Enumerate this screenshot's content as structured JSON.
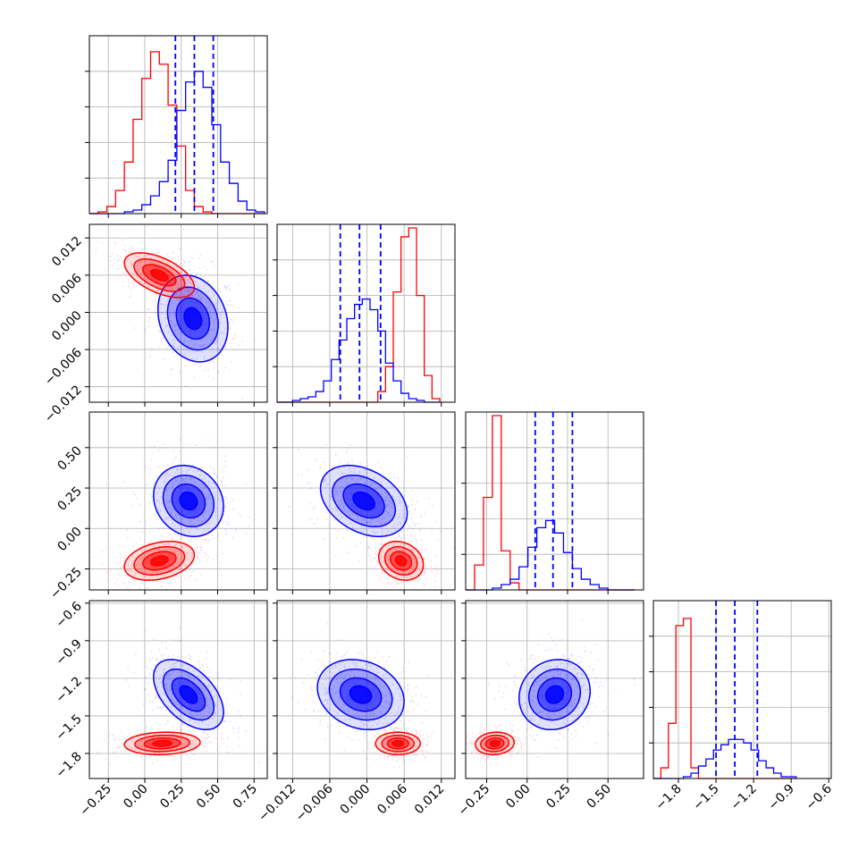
{
  "chart_data": {
    "type": "corner",
    "title": "",
    "grid": true,
    "colors": {
      "series_a": "#ff0000",
      "series_b": "#0000ff",
      "grid": "#b0b0b0"
    },
    "series": [
      {
        "color": "#ff0000",
        "means": [
          0.1,
          0.006,
          -0.2,
          -1.72
        ]
      },
      {
        "color": "#0000ff",
        "means": [
          0.35,
          -0.001,
          0.17,
          -1.33
        ],
        "quantiles": [
          [
            0.21,
            0.34,
            0.47
          ],
          [
            -0.0043,
            -0.0012,
            0.0022
          ],
          [
            0.05,
            0.16,
            0.28
          ],
          [
            -1.5,
            -1.35,
            -1.17
          ]
        ]
      }
    ],
    "ranges": [
      [
        -0.38,
        0.84
      ],
      [
        -0.0145,
        0.0142
      ],
      [
        -0.38,
        0.72
      ],
      [
        -2.0,
        -0.58
      ]
    ],
    "ticks": [
      [
        "−0.25",
        "0.00",
        "0.25",
        "0.50",
        "0.75"
      ],
      [
        "−0.012",
        "−0.006",
        "0.000",
        "0.006",
        "0.012"
      ],
      [
        "−0.25",
        "0.00",
        "0.25",
        "0.50"
      ],
      [
        "−1.8",
        "−1.5",
        "−1.2",
        "−0.9",
        "−0.6"
      ]
    ],
    "tick_values": [
      [
        -0.25,
        0,
        0.25,
        0.5,
        0.75
      ],
      [
        -0.012,
        -0.006,
        0,
        0.006,
        0.012
      ],
      [
        -0.25,
        0,
        0.25,
        0.5
      ],
      [
        -1.8,
        -1.5,
        -1.2,
        -0.9,
        -0.6
      ]
    ],
    "histograms": [
      {
        "bin_edges": [
          -0.38,
          -0.32,
          -0.26,
          -0.2,
          -0.14,
          -0.08,
          -0.02,
          0.04,
          0.1,
          0.16,
          0.22,
          0.28,
          0.34,
          0.4,
          0.46,
          0.52,
          0.58,
          0.64,
          0.7,
          0.76,
          0.82
        ],
        "red": [
          0,
          0.01,
          0.04,
          0.13,
          0.29,
          0.53,
          0.76,
          0.91,
          0.84,
          0.61,
          0.38,
          0.13,
          0.04,
          0.01,
          0,
          0,
          0,
          0,
          0,
          0
        ],
        "blue": [
          0,
          0,
          0,
          0,
          0.01,
          0.02,
          0.05,
          0.1,
          0.18,
          0.3,
          0.58,
          0.74,
          0.8,
          0.71,
          0.5,
          0.29,
          0.17,
          0.07,
          0.02,
          0.01
        ]
      },
      {
        "bin_edges": [
          -0.0145,
          -0.01325,
          -0.012,
          -0.01075,
          -0.0095,
          -0.00825,
          -0.007,
          -0.00575,
          -0.0045,
          -0.00325,
          -0.002,
          -0.00075,
          0.0005,
          0.00175,
          0.003,
          0.00425,
          0.0055,
          0.00675,
          0.008,
          0.00925,
          0.0105,
          0.01175
        ],
        "red": [
          0,
          0,
          0,
          0,
          0,
          0,
          0,
          0,
          0,
          0,
          0,
          0,
          0,
          0.06,
          0.2,
          0.62,
          0.93,
          0.98,
          0.6,
          0.15,
          0.02
        ],
        "blue": [
          0,
          0,
          0.01,
          0.02,
          0.03,
          0.06,
          0.12,
          0.24,
          0.35,
          0.47,
          0.55,
          0.58,
          0.52,
          0.4,
          0.22,
          0.12,
          0.05,
          0.02,
          0.01,
          0,
          0
        ]
      },
      {
        "bin_edges": [
          -0.38,
          -0.325,
          -0.27,
          -0.215,
          -0.16,
          -0.105,
          -0.05,
          0.005,
          0.06,
          0.115,
          0.17,
          0.225,
          0.28,
          0.335,
          0.39,
          0.445,
          0.5,
          0.555,
          0.61,
          0.665
        ],
        "red": [
          0,
          0.14,
          0.52,
          0.98,
          0.22,
          0.04,
          0,
          0,
          0,
          0,
          0,
          0,
          0,
          0,
          0,
          0,
          0,
          0,
          0
        ],
        "blue": [
          0,
          0,
          0,
          0.01,
          0.03,
          0.06,
          0.13,
          0.24,
          0.35,
          0.39,
          0.32,
          0.21,
          0.12,
          0.06,
          0.03,
          0.01,
          0,
          0,
          0
        ]
      },
      {
        "bin_edges": [
          -2.0,
          -1.94,
          -1.88,
          -1.82,
          -1.76,
          -1.7,
          -1.64,
          -1.58,
          -1.52,
          -1.46,
          -1.4,
          -1.34,
          -1.28,
          -1.22,
          -1.16,
          -1.1,
          -1.04,
          -0.98,
          -0.92,
          -0.86
        ],
        "red": [
          0,
          0.06,
          0.31,
          0.86,
          0.9,
          0.06,
          0,
          0,
          0,
          0,
          0,
          0,
          0,
          0,
          0,
          0,
          0,
          0,
          0
        ],
        "blue": [
          0,
          0,
          0,
          0,
          0.01,
          0.03,
          0.07,
          0.11,
          0.16,
          0.19,
          0.22,
          0.22,
          0.2,
          0.16,
          0.1,
          0.06,
          0.03,
          0.01,
          0.01
        ]
      }
    ],
    "contours": {
      "red": [
        {
          "i": 0,
          "j": 1,
          "center": [
            0.1,
            0.006
          ],
          "sd": [
            0.12,
            0.0018
          ],
          "rho": -0.55
        },
        {
          "i": 0,
          "j": 2,
          "center": [
            0.1,
            -0.2
          ],
          "sd": [
            0.12,
            0.06
          ],
          "rho": 0.3
        },
        {
          "i": 1,
          "j": 2,
          "center": [
            0.0055,
            -0.2
          ],
          "sd": [
            0.0018,
            0.06
          ],
          "rho": -0.2
        },
        {
          "i": 0,
          "j": 3,
          "center": [
            0.12,
            -1.72
          ],
          "sd": [
            0.13,
            0.045
          ],
          "rho": 0.1
        },
        {
          "i": 1,
          "j": 3,
          "center": [
            0.005,
            -1.72
          ],
          "sd": [
            0.0018,
            0.045
          ],
          "rho": 0
        },
        {
          "i": 2,
          "j": 3,
          "center": [
            -0.2,
            -1.72
          ],
          "sd": [
            0.06,
            0.045
          ],
          "rho": 0.1
        }
      ],
      "blue": [
        {
          "i": 0,
          "j": 1,
          "center": [
            0.33,
            -0.001
          ],
          "sd": [
            0.12,
            0.0035
          ],
          "rho": -0.2
        },
        {
          "i": 0,
          "j": 2,
          "center": [
            0.3,
            0.17
          ],
          "sd": [
            0.12,
            0.11
          ],
          "rho": -0.15
        },
        {
          "i": 1,
          "j": 2,
          "center": [
            -0.0005,
            0.17
          ],
          "sd": [
            0.0035,
            0.11
          ],
          "rho": -0.35
        },
        {
          "i": 0,
          "j": 3,
          "center": [
            0.3,
            -1.33
          ],
          "sd": [
            0.12,
            0.14
          ],
          "rho": -0.5
        },
        {
          "i": 1,
          "j": 3,
          "center": [
            -0.001,
            -1.33
          ],
          "sd": [
            0.0035,
            0.14
          ],
          "rho": -0.2
        },
        {
          "i": 2,
          "j": 3,
          "center": [
            0.17,
            -1.33
          ],
          "sd": [
            0.11,
            0.14
          ],
          "rho": 0.1
        }
      ]
    }
  }
}
